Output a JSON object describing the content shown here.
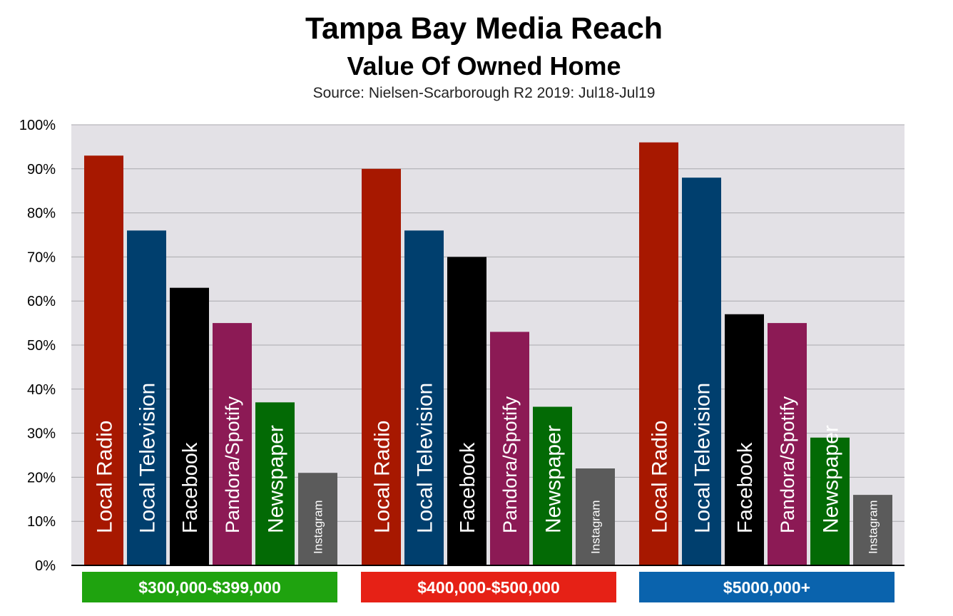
{
  "title": "Tampa Bay Media Reach",
  "subtitle": "Value Of Owned Home",
  "source": "Source: Nielsen-Scarborough R2 2019: Jul18-Jul19",
  "chart_data": {
    "type": "bar",
    "title": "Tampa Bay Media Reach",
    "subtitle": "Value Of Owned Home",
    "ylabel": "",
    "xlabel": "",
    "ylim": [
      0,
      100
    ],
    "yticks": [
      "0%",
      "10%",
      "20%",
      "30%",
      "40%",
      "50%",
      "60%",
      "70%",
      "80%",
      "90%",
      "100%"
    ],
    "grid": true,
    "categories": [
      "$300,000-$399,000",
      "$400,000-$500,000",
      "$5000,000+"
    ],
    "category_colors": [
      "#1fa30f",
      "#e62116",
      "#0a63ad"
    ],
    "series": [
      {
        "name": "Local Radio",
        "color": "#a71800",
        "values": [
          93,
          90,
          96
        ]
      },
      {
        "name": "Local Television",
        "color": "#003f6e",
        "values": [
          76,
          76,
          88
        ]
      },
      {
        "name": "Facebook",
        "color": "#000000",
        "values": [
          63,
          70,
          57
        ]
      },
      {
        "name": "Pandora/Spotify",
        "color": "#8c1a55",
        "values": [
          55,
          53,
          55
        ]
      },
      {
        "name": "Newspaper",
        "color": "#036a05",
        "values": [
          37,
          36,
          29
        ]
      },
      {
        "name": "Instagram",
        "color": "#5b5b5b",
        "values": [
          21,
          22,
          16
        ]
      }
    ]
  }
}
